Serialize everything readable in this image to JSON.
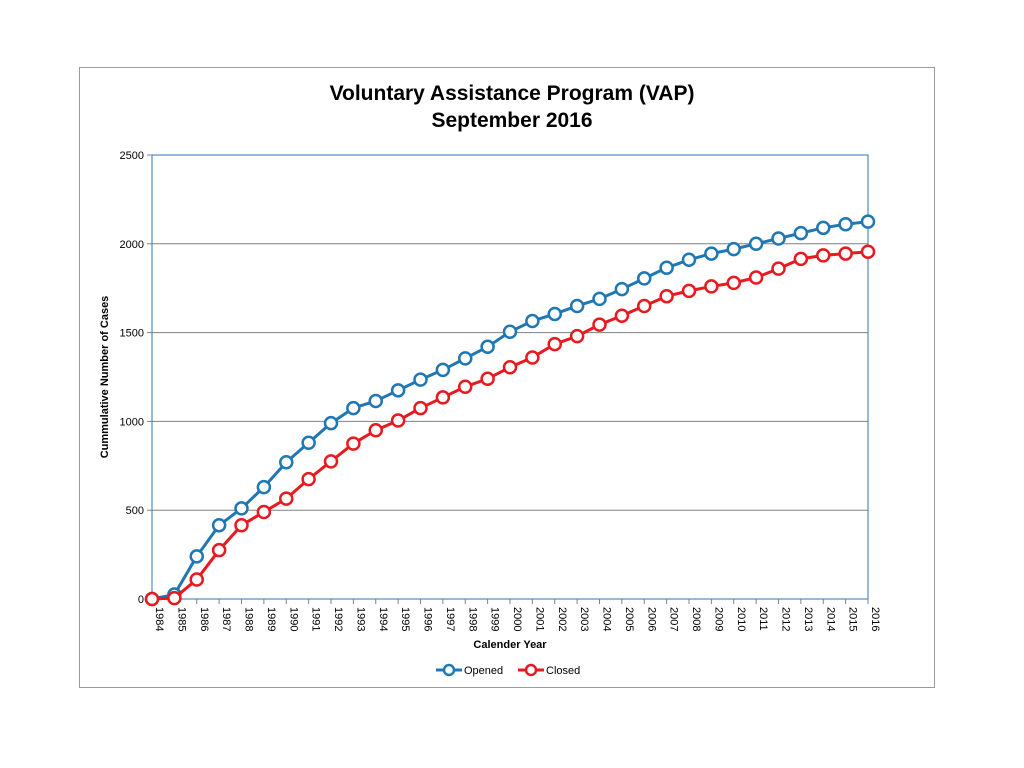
{
  "chart_data": {
    "type": "line",
    "title": "Voluntary Assistance Program (VAP)",
    "subtitle": "September 2016",
    "xlabel": "Calender Year",
    "ylabel": "Cummulative Number of Cases",
    "ylim": [
      0,
      2500
    ],
    "yticks": [
      "0",
      "500",
      "1000",
      "1500",
      "2000",
      "2500"
    ],
    "grid": true,
    "legend": "bottom",
    "categories": [
      "1984",
      "1985",
      "1986",
      "1987",
      "1988",
      "1989",
      "1990",
      "1991",
      "1992",
      "1993",
      "1994",
      "1995",
      "1996",
      "1997",
      "1998",
      "1999",
      "2000",
      "2001",
      "2002",
      "2003",
      "2004",
      "2005",
      "2006",
      "2007",
      "2008",
      "2009",
      "2010",
      "2011",
      "2012",
      "2013",
      "2014",
      "2015",
      "2016"
    ],
    "series": [
      {
        "name": "Opened",
        "color": "#1f77b4",
        "values": [
          0,
          25,
          240,
          415,
          510,
          630,
          770,
          880,
          990,
          1075,
          1115,
          1175,
          1235,
          1290,
          1355,
          1420,
          1505,
          1565,
          1605,
          1650,
          1690,
          1745,
          1805,
          1865,
          1910,
          1945,
          1970,
          2000,
          2030,
          2060,
          2090,
          2110,
          2125
        ]
      },
      {
        "name": "Closed",
        "color": "#e8191f",
        "values": [
          0,
          5,
          110,
          275,
          415,
          490,
          565,
          675,
          775,
          875,
          950,
          1005,
          1075,
          1135,
          1195,
          1240,
          1305,
          1360,
          1435,
          1480,
          1545,
          1595,
          1650,
          1705,
          1735,
          1760,
          1780,
          1810,
          1860,
          1915,
          1935,
          1945,
          1955
        ]
      }
    ]
  }
}
